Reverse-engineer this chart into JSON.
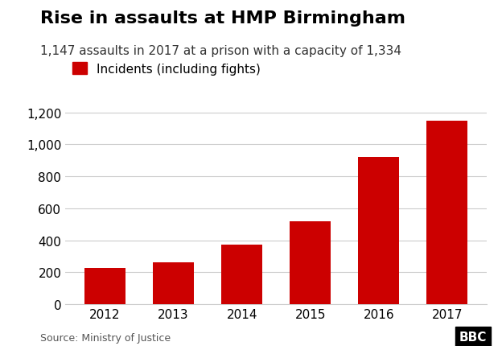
{
  "title": "Rise in assaults at HMP Birmingham",
  "subtitle": "1,147 assaults in 2017 at a prison with a capacity of 1,334",
  "legend_label": "Incidents (including fights)",
  "years": [
    "2012",
    "2013",
    "2014",
    "2015",
    "2016",
    "2017"
  ],
  "values": [
    230,
    263,
    375,
    519,
    921,
    1147
  ],
  "bar_color": "#cc0000",
  "ylim": [
    0,
    1300
  ],
  "yticks": [
    0,
    200,
    400,
    600,
    800,
    1000,
    1200
  ],
  "ytick_labels": [
    "0",
    "200",
    "400",
    "600",
    "800",
    "1,000",
    "1,200"
  ],
  "source": "Source: Ministry of Justice",
  "bg_color": "#ffffff",
  "grid_color": "#cccccc",
  "title_fontsize": 16,
  "subtitle_fontsize": 11,
  "axis_fontsize": 11,
  "legend_square_color": "#cc0000",
  "figsize": [
    6.24,
    4.31
  ],
  "dpi": 100
}
